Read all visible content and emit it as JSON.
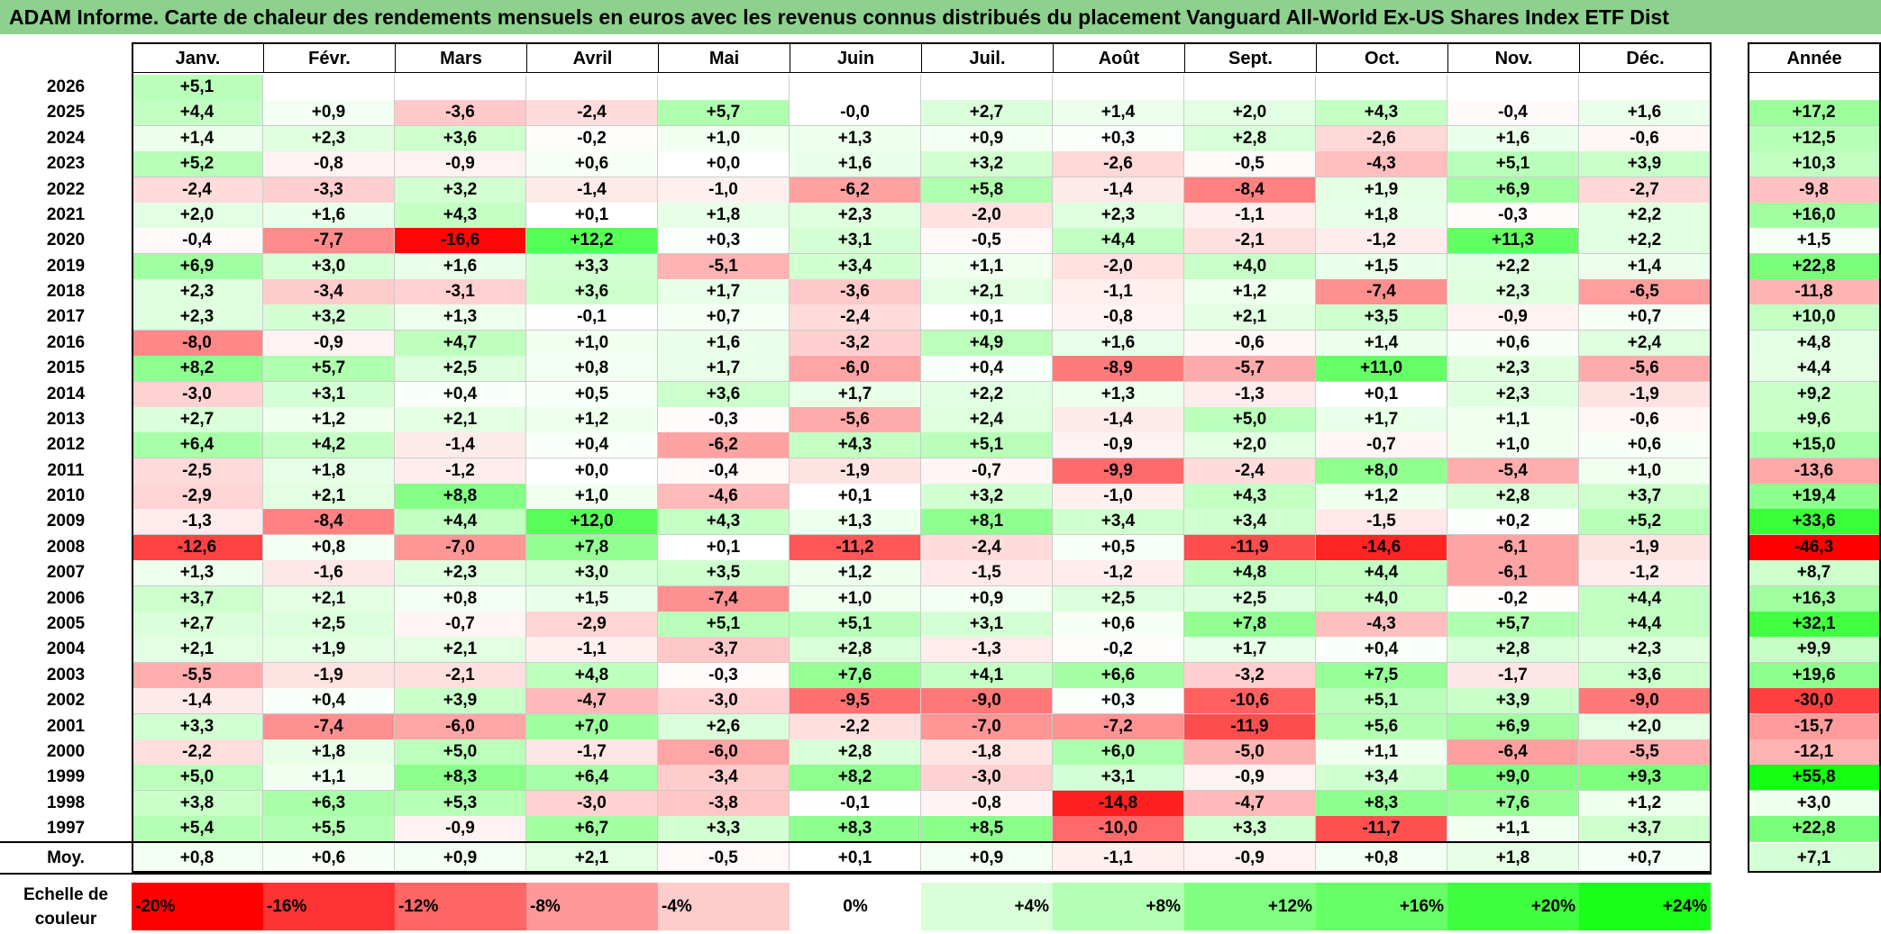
{
  "title": "ADAM Informe. Carte de chaleur des rendements mensuels en euros avec les revenus connus distribués du placement Vanguard All-World Ex-US Shares Index ETF Dist",
  "chart_data": {
    "type": "heatmap",
    "months": [
      "Janv.",
      "Févr.",
      "Mars",
      "Avril",
      "Mai",
      "Juin",
      "Juil.",
      "Août",
      "Sept.",
      "Oct.",
      "Nov.",
      "Déc."
    ],
    "year_header": "Année",
    "rows": [
      {
        "year": "2026",
        "months": [
          "+5,1",
          "",
          "",
          "",
          "",
          "",
          "",
          "",
          "",
          "",
          "",
          ""
        ],
        "annual": ""
      },
      {
        "year": "2025",
        "months": [
          "+4,4",
          "+0,9",
          "-3,6",
          "-2,4",
          "+5,7",
          "-0,0",
          "+2,7",
          "+1,4",
          "+2,0",
          "+4,3",
          "-0,4",
          "+1,6"
        ],
        "annual": "+17,2"
      },
      {
        "year": "2024",
        "months": [
          "+1,4",
          "+2,3",
          "+3,6",
          "-0,2",
          "+1,0",
          "+1,3",
          "+0,9",
          "+0,3",
          "+2,8",
          "-2,6",
          "+1,6",
          "-0,6"
        ],
        "annual": "+12,5"
      },
      {
        "year": "2023",
        "months": [
          "+5,2",
          "-0,8",
          "-0,9",
          "+0,6",
          "+0,0",
          "+1,6",
          "+3,2",
          "-2,6",
          "-0,5",
          "-4,3",
          "+5,1",
          "+3,9"
        ],
        "annual": "+10,3"
      },
      {
        "year": "2022",
        "months": [
          "-2,4",
          "-3,3",
          "+3,2",
          "-1,4",
          "-1,0",
          "-6,2",
          "+5,8",
          "-1,4",
          "-8,4",
          "+1,9",
          "+6,9",
          "-2,7"
        ],
        "annual": "-9,8"
      },
      {
        "year": "2021",
        "months": [
          "+2,0",
          "+1,6",
          "+4,3",
          "+0,1",
          "+1,8",
          "+2,3",
          "-2,0",
          "+2,3",
          "-1,1",
          "+1,8",
          "-0,3",
          "+2,2"
        ],
        "annual": "+16,0"
      },
      {
        "year": "2020",
        "months": [
          "-0,4",
          "-7,7",
          "-16,6",
          "+12,2",
          "+0,3",
          "+3,1",
          "-0,5",
          "+4,4",
          "-2,1",
          "-1,2",
          "+11,3",
          "+2,2"
        ],
        "annual": "+1,5"
      },
      {
        "year": "2019",
        "months": [
          "+6,9",
          "+3,0",
          "+1,6",
          "+3,3",
          "-5,1",
          "+3,4",
          "+1,1",
          "-2,0",
          "+4,0",
          "+1,5",
          "+2,2",
          "+1,4"
        ],
        "annual": "+22,8"
      },
      {
        "year": "2018",
        "months": [
          "+2,3",
          "-3,4",
          "-3,1",
          "+3,6",
          "+1,7",
          "-3,6",
          "+2,1",
          "-1,1",
          "+1,2",
          "-7,4",
          "+2,3",
          "-6,5"
        ],
        "annual": "-11,8"
      },
      {
        "year": "2017",
        "months": [
          "+2,3",
          "+3,2",
          "+1,3",
          "-0,1",
          "+0,7",
          "-2,4",
          "+0,1",
          "-0,8",
          "+2,1",
          "+3,5",
          "-0,9",
          "+0,7"
        ],
        "annual": "+10,0"
      },
      {
        "year": "2016",
        "months": [
          "-8,0",
          "-0,9",
          "+4,7",
          "+1,0",
          "+1,6",
          "-3,2",
          "+4,9",
          "+1,6",
          "-0,6",
          "+1,4",
          "+0,6",
          "+2,4"
        ],
        "annual": "+4,8"
      },
      {
        "year": "2015",
        "months": [
          "+8,2",
          "+5,7",
          "+2,5",
          "+0,8",
          "+1,7",
          "-6,0",
          "+0,4",
          "-8,9",
          "-5,7",
          "+11,0",
          "+2,3",
          "-5,6"
        ],
        "annual": "+4,4"
      },
      {
        "year": "2014",
        "months": [
          "-3,0",
          "+3,1",
          "+0,4",
          "+0,5",
          "+3,6",
          "+1,7",
          "+2,2",
          "+1,3",
          "-1,3",
          "+0,1",
          "+2,3",
          "-1,9"
        ],
        "annual": "+9,2"
      },
      {
        "year": "2013",
        "months": [
          "+2,7",
          "+1,2",
          "+2,1",
          "+1,2",
          "-0,3",
          "-5,6",
          "+2,4",
          "-1,4",
          "+5,0",
          "+1,7",
          "+1,1",
          "-0,6"
        ],
        "annual": "+9,6"
      },
      {
        "year": "2012",
        "months": [
          "+6,4",
          "+4,2",
          "-1,4",
          "+0,4",
          "-6,2",
          "+4,3",
          "+5,1",
          "-0,9",
          "+2,0",
          "-0,7",
          "+1,0",
          "+0,6"
        ],
        "annual": "+15,0"
      },
      {
        "year": "2011",
        "months": [
          "-2,5",
          "+1,8",
          "-1,2",
          "+0,0",
          "-0,4",
          "-1,9",
          "-0,7",
          "-9,9",
          "-2,4",
          "+8,0",
          "-5,4",
          "+1,0"
        ],
        "annual": "-13,6"
      },
      {
        "year": "2010",
        "months": [
          "-2,9",
          "+2,1",
          "+8,8",
          "+1,0",
          "-4,6",
          "+0,1",
          "+3,2",
          "-1,0",
          "+4,3",
          "+1,2",
          "+2,8",
          "+3,7"
        ],
        "annual": "+19,4"
      },
      {
        "year": "2009",
        "months": [
          "-1,3",
          "-8,4",
          "+4,4",
          "+12,0",
          "+4,3",
          "+1,3",
          "+8,1",
          "+3,4",
          "+3,4",
          "-1,5",
          "+0,2",
          "+5,2"
        ],
        "annual": "+33,6"
      },
      {
        "year": "2008",
        "months": [
          "-12,6",
          "+0,8",
          "-7,0",
          "+7,8",
          "+0,1",
          "-11,2",
          "-2,4",
          "+0,5",
          "-11,9",
          "-14,6",
          "-6,1",
          "-1,9"
        ],
        "annual": "-46,3"
      },
      {
        "year": "2007",
        "months": [
          "+1,3",
          "-1,6",
          "+2,3",
          "+3,0",
          "+3,5",
          "+1,2",
          "-1,5",
          "-1,2",
          "+4,8",
          "+4,4",
          "-6,1",
          "-1,2"
        ],
        "annual": "+8,7"
      },
      {
        "year": "2006",
        "months": [
          "+3,7",
          "+2,1",
          "+0,8",
          "+1,5",
          "-7,4",
          "+1,0",
          "+0,9",
          "+2,5",
          "+2,5",
          "+4,0",
          "-0,2",
          "+4,4"
        ],
        "annual": "+16,3"
      },
      {
        "year": "2005",
        "months": [
          "+2,7",
          "+2,5",
          "-0,7",
          "-2,9",
          "+5,1",
          "+5,1",
          "+3,1",
          "+0,6",
          "+7,8",
          "-4,3",
          "+5,7",
          "+4,4"
        ],
        "annual": "+32,1"
      },
      {
        "year": "2004",
        "months": [
          "+2,1",
          "+1,9",
          "+2,1",
          "-1,1",
          "-3,7",
          "+2,8",
          "-1,3",
          "-0,2",
          "+1,7",
          "+0,4",
          "+2,8",
          "+2,3"
        ],
        "annual": "+9,9"
      },
      {
        "year": "2003",
        "months": [
          "-5,5",
          "-1,9",
          "-2,1",
          "+4,8",
          "-0,3",
          "+7,6",
          "+4,1",
          "+6,6",
          "-3,2",
          "+7,5",
          "-1,7",
          "+3,6"
        ],
        "annual": "+19,6"
      },
      {
        "year": "2002",
        "months": [
          "-1,4",
          "+0,4",
          "+3,9",
          "-4,7",
          "-3,0",
          "-9,5",
          "-9,0",
          "+0,3",
          "-10,6",
          "+5,1",
          "+3,9",
          "-9,0"
        ],
        "annual": "-30,0"
      },
      {
        "year": "2001",
        "months": [
          "+3,3",
          "-7,4",
          "-6,0",
          "+7,0",
          "+2,6",
          "-2,2",
          "-7,0",
          "-7,2",
          "-11,9",
          "+5,6",
          "+6,9",
          "+2,0"
        ],
        "annual": "-15,7"
      },
      {
        "year": "2000",
        "months": [
          "-2,2",
          "+1,8",
          "+5,0",
          "-1,7",
          "-6,0",
          "+2,8",
          "-1,8",
          "+6,0",
          "-5,0",
          "+1,1",
          "-6,4",
          "-5,5"
        ],
        "annual": "-12,1"
      },
      {
        "year": "1999",
        "months": [
          "+5,0",
          "+1,1",
          "+8,3",
          "+6,4",
          "-3,4",
          "+8,2",
          "-3,0",
          "+3,1",
          "-0,9",
          "+3,4",
          "+9,0",
          "+9,3"
        ],
        "annual": "+55,8"
      },
      {
        "year": "1998",
        "months": [
          "+3,8",
          "+6,3",
          "+5,3",
          "-3,0",
          "-3,8",
          "-0,1",
          "-0,8",
          "-14,8",
          "-4,7",
          "+8,3",
          "+7,6",
          "+1,2"
        ],
        "annual": "+3,0"
      },
      {
        "year": "1997",
        "months": [
          "+5,4",
          "+5,5",
          "-0,9",
          "+6,7",
          "+3,3",
          "+8,3",
          "+8,5",
          "-10,0",
          "+3,3",
          "-11,7",
          "+1,1",
          "+3,7"
        ],
        "annual": "+22,8"
      }
    ],
    "average": {
      "label": "Moy.",
      "months": [
        "+0,8",
        "+0,6",
        "+0,9",
        "+2,1",
        "-0,5",
        "+0,1",
        "+0,9",
        "-1,1",
        "-0,9",
        "+0,8",
        "+1,8",
        "+0,7"
      ],
      "annual": "+7,1"
    },
    "scale": {
      "label_line1": "Echelle de",
      "label_line2": "couleur",
      "items": [
        {
          "label": "-20%",
          "value": -20,
          "color": "#ff0000"
        },
        {
          "label": "-16%",
          "value": -16,
          "color": "#ff3333"
        },
        {
          "label": "-12%",
          "value": -12,
          "color": "#ff6666"
        },
        {
          "label": "-8%",
          "value": -8,
          "color": "#ff9999"
        },
        {
          "label": "-4%",
          "value": -4,
          "color": "#ffcccc"
        },
        {
          "label": "0%",
          "value": 0,
          "color": "#ffffff"
        },
        {
          "label": "+4%",
          "value": 4,
          "color": "#d9ffd9"
        },
        {
          "label": "+8%",
          "value": 8,
          "color": "#b3ffb3"
        },
        {
          "label": "+12%",
          "value": 12,
          "color": "#80ff80"
        },
        {
          "label": "+16%",
          "value": 16,
          "color": "#66ff66"
        },
        {
          "label": "+20%",
          "value": 20,
          "color": "#40ff40"
        },
        {
          "label": "+24%",
          "value": 24,
          "color": "#19ff19"
        }
      ]
    }
  }
}
